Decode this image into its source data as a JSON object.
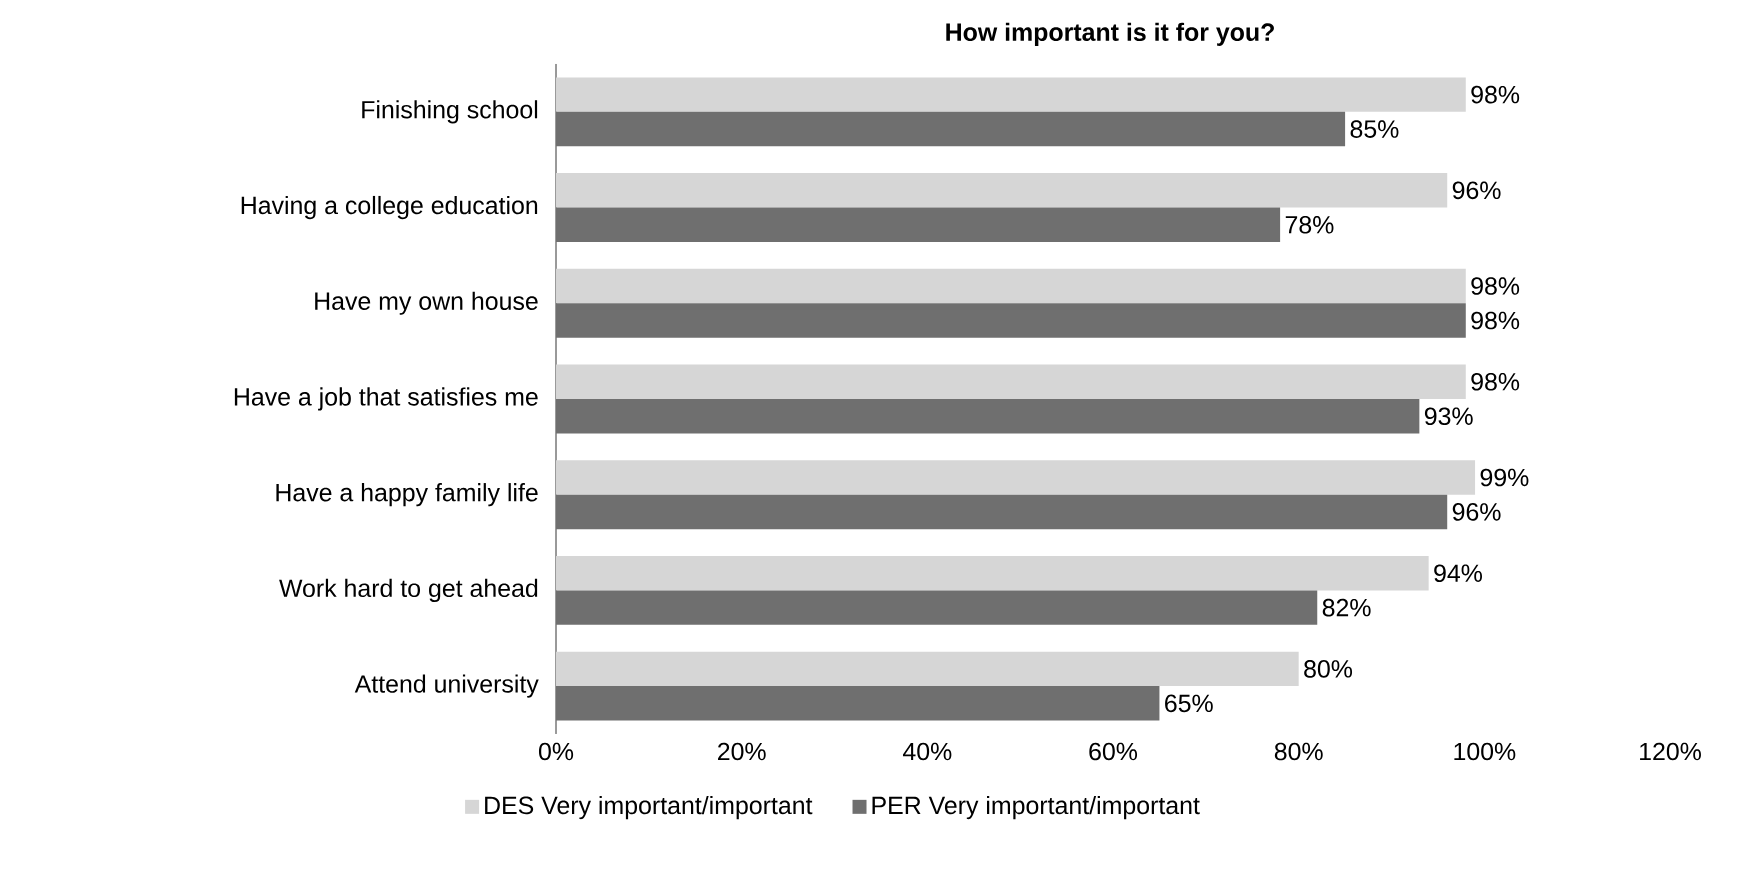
{
  "chart_data": {
    "type": "bar",
    "orientation": "horizontal",
    "title": "How important is it for you?",
    "categories": [
      "Finishing school",
      "Having a college education",
      "Have my own house",
      "Have a job that satisfies me",
      "Have a happy family life",
      "Work hard to get ahead",
      "Attend university"
    ],
    "series": [
      {
        "name": "DES Very important/important",
        "color": "#d6d6d6",
        "values": [
          98,
          96,
          98,
          98,
          99,
          94,
          80
        ],
        "value_labels": [
          "98%",
          "96%",
          "98%",
          "98%",
          "99%",
          "94%",
          "80%"
        ]
      },
      {
        "name": "PER Very important/important",
        "color": "#6f6f6f",
        "values": [
          85,
          78,
          98,
          93,
          96,
          82,
          65
        ],
        "value_labels": [
          "85%",
          "78%",
          "98%",
          "93%",
          "96%",
          "82%",
          "65%"
        ]
      }
    ],
    "xlim": [
      0,
      120
    ],
    "xticks": [
      {
        "value": 0,
        "label": "0%"
      },
      {
        "value": 20,
        "label": "20%"
      },
      {
        "value": 40,
        "label": "40%"
      },
      {
        "value": 60,
        "label": "60%"
      },
      {
        "value": 80,
        "label": "80%"
      },
      {
        "value": 100,
        "label": "100%"
      },
      {
        "value": 120,
        "label": "120%"
      }
    ],
    "grid": false,
    "legend": "bottom"
  }
}
